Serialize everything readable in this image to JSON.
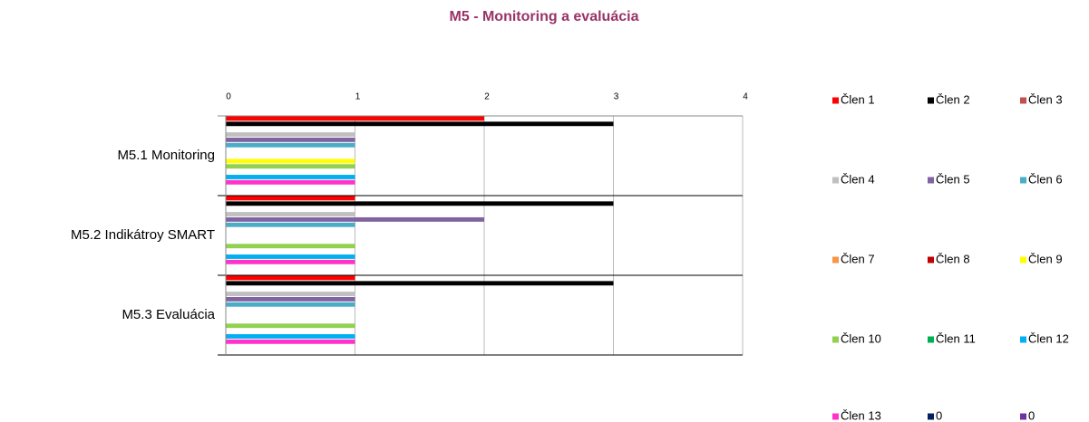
{
  "chart_data": {
    "type": "hbar",
    "title": "M5 - Monitoring a evaluácia",
    "categories": [
      "M5.1 Monitoring",
      "M5.2 Indikátroy SMART",
      "M5.3 Evaluácia"
    ],
    "series": [
      {
        "name": "Člen 1",
        "color": "#ff0000",
        "values": [
          2,
          1,
          1
        ]
      },
      {
        "name": "Člen 2",
        "color": "#000000",
        "values": [
          3,
          3,
          3
        ]
      },
      {
        "name": "Člen 3",
        "color": "#c0504d",
        "values": [
          0,
          0,
          0
        ]
      },
      {
        "name": "Člen 4",
        "color": "#c0c0c0",
        "values": [
          1,
          1,
          1
        ]
      },
      {
        "name": "Člen 5",
        "color": "#8064a2",
        "values": [
          1,
          2,
          1
        ]
      },
      {
        "name": "Člen 6",
        "color": "#4bacc6",
        "values": [
          1,
          1,
          1
        ]
      },
      {
        "name": "Člen 7",
        "color": "#f79646",
        "values": [
          0,
          0,
          0
        ]
      },
      {
        "name": "Člen 8",
        "color": "#c00000",
        "values": [
          0,
          0,
          0
        ]
      },
      {
        "name": "Člen 9",
        "color": "#ffff00",
        "values": [
          1,
          0,
          0
        ]
      },
      {
        "name": "Člen 10",
        "color": "#92d050",
        "values": [
          1,
          1,
          1
        ]
      },
      {
        "name": "Člen 11",
        "color": "#00b050",
        "values": [
          0,
          0,
          0
        ]
      },
      {
        "name": "Člen 12",
        "color": "#00b0f0",
        "values": [
          1,
          1,
          1
        ]
      },
      {
        "name": "Člen 13",
        "color": "#ff33cc",
        "values": [
          1,
          1,
          1
        ]
      },
      {
        "name": "0",
        "color": "#002060",
        "values": [
          0,
          0,
          0
        ]
      },
      {
        "name": "0",
        "color": "#7030a0",
        "values": [
          0,
          0,
          0
        ]
      }
    ],
    "xlim": [
      0,
      4
    ],
    "xticks": [
      0,
      1,
      2,
      3,
      4
    ],
    "grid": true,
    "legend": "right"
  }
}
